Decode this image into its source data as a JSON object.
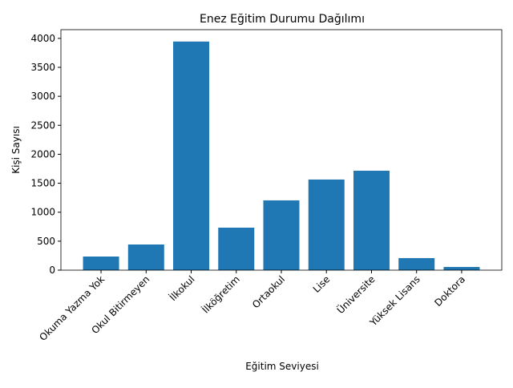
{
  "chart_data": {
    "type": "bar",
    "title": "Enez Eğitim Durumu Dağılımı",
    "x_label": "Eğitim Seviyesi",
    "y_label": "Kişi Sayısı",
    "categories": [
      "Okuma Yazma Yok",
      "Okul Bitirmeyen",
      "İlkokul",
      "İlköğretim",
      "Ortaokul",
      "Lise",
      "Üniversite",
      "Yüksek Lisans",
      "Doktora"
    ],
    "values": [
      235,
      443,
      3945,
      733,
      1204,
      1564,
      1716,
      208,
      55
    ],
    "color": "#1f77b4",
    "ylim": [
      0,
      4150
    ],
    "yticks": [
      0,
      500,
      1000,
      1500,
      2000,
      2500,
      3000,
      3500,
      4000
    ],
    "grid": false
  }
}
